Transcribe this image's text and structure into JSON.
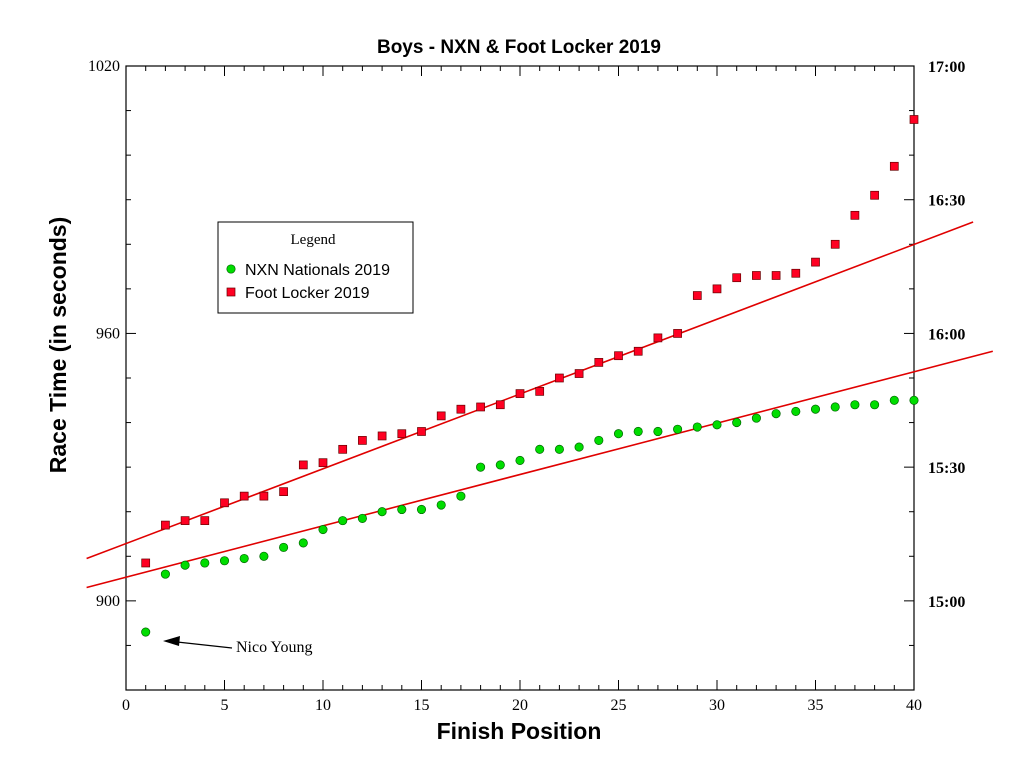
{
  "chart_data": {
    "type": "scatter",
    "title": "Boys - NXN & Foot Locker 2019",
    "xlabel": "Finish Position",
    "ylabel": "Race Time (in seconds)",
    "xlim": [
      0,
      40
    ],
    "ylim": [
      880,
      1020
    ],
    "x_ticks": [
      0,
      5,
      10,
      15,
      20,
      25,
      30,
      35,
      40
    ],
    "y_ticks": [
      900,
      960,
      1020
    ],
    "y2_ticks": [
      {
        "value": 900,
        "label": "15:00"
      },
      {
        "value": 930,
        "label": "15:30"
      },
      {
        "value": 960,
        "label": "16:00"
      },
      {
        "value": 990,
        "label": "16:30"
      },
      {
        "value": 1020,
        "label": "17:00"
      }
    ],
    "grid": false,
    "legend": {
      "title": "Legend",
      "placement": "upper-left",
      "entries": [
        "NXN Nationals 2019",
        "Foot Locker 2019"
      ]
    },
    "series": [
      {
        "name": "NXN Nationals 2019",
        "marker": "circle",
        "color": "#00dd00",
        "x": [
          1,
          2,
          3,
          4,
          5,
          6,
          7,
          8,
          9,
          10,
          11,
          12,
          13,
          14,
          15,
          16,
          17,
          18,
          19,
          20,
          21,
          22,
          23,
          24,
          25,
          26,
          27,
          28,
          29,
          30,
          31,
          32,
          33,
          34,
          35,
          36,
          37,
          38,
          39,
          40
        ],
        "y": [
          893,
          906,
          908,
          908.5,
          909,
          909.5,
          910,
          912,
          913,
          916,
          918,
          918.5,
          920,
          920.5,
          920.5,
          921.5,
          923.5,
          930,
          930.5,
          931.5,
          934,
          934,
          934.5,
          936,
          937.5,
          938,
          938,
          938.5,
          939,
          939.5,
          940,
          941,
          942,
          942.5,
          943,
          943.5,
          944,
          944,
          945,
          945
        ]
      },
      {
        "name": "Foot Locker 2019",
        "marker": "square",
        "color": "#ff0022",
        "x": [
          1,
          2,
          3,
          4,
          5,
          6,
          7,
          8,
          9,
          10,
          11,
          12,
          13,
          14,
          15,
          16,
          17,
          18,
          19,
          20,
          21,
          22,
          23,
          24,
          25,
          26,
          27,
          28,
          29,
          30,
          31,
          32,
          33,
          34,
          35,
          36,
          37,
          38,
          39,
          40
        ],
        "y": [
          908.5,
          917,
          918,
          918,
          922,
          923.5,
          923.5,
          924.5,
          930.5,
          931,
          934,
          936,
          937,
          937.5,
          938,
          941.5,
          943,
          943.5,
          944,
          946.5,
          947,
          950,
          951,
          953.5,
          955,
          956,
          959,
          960,
          968.5,
          970,
          972.5,
          973,
          973,
          973.5,
          976,
          980,
          986.5,
          991,
          997.5,
          1008
        ]
      }
    ],
    "trendlines": [
      {
        "name": "NXN Nationals 2019",
        "x": [
          -2,
          44
        ],
        "y": [
          903,
          956
        ]
      },
      {
        "name": "Foot Locker 2019",
        "x": [
          -2,
          43
        ],
        "y": [
          909.5,
          985
        ]
      }
    ],
    "annotations": [
      {
        "text": "Nico Young",
        "x": 1,
        "y": 893
      }
    ]
  }
}
